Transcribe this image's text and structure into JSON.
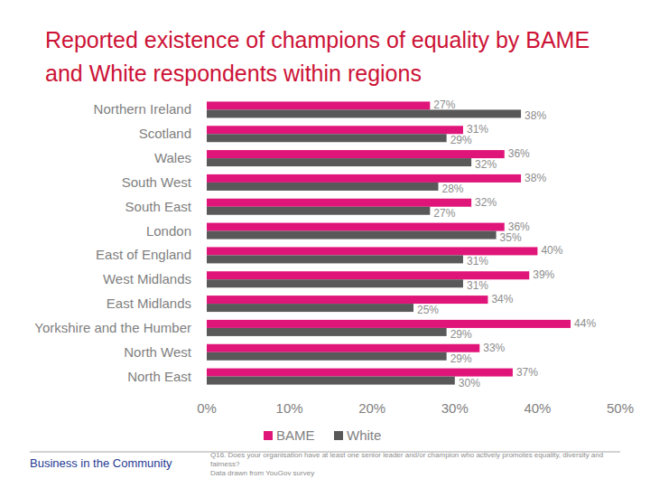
{
  "chart_data": {
    "type": "bar",
    "orientation": "horizontal",
    "title": "Reported existence of champions of equality by BAME and White respondents within regions",
    "categories": [
      "Northern Ireland",
      "Scotland",
      "Wales",
      "South West",
      "South East",
      "London",
      "East of England",
      "West Midlands",
      "East Midlands",
      "Yorkshire and the Humber",
      "North West",
      "North East"
    ],
    "series": [
      {
        "name": "BAME",
        "color": "#e0157a",
        "values": [
          27,
          31,
          36,
          38,
          32,
          36,
          40,
          39,
          34,
          44,
          33,
          37
        ],
        "value_labels": [
          "27%",
          "31%",
          "36%",
          "38%",
          "32%",
          "36%",
          "40%",
          "39%",
          "34%",
          "44%",
          "33%",
          "37%"
        ]
      },
      {
        "name": "White",
        "color": "#595959",
        "values": [
          38,
          29,
          32,
          28,
          27,
          35,
          31,
          31,
          25,
          29,
          29,
          30
        ],
        "value_labels": [
          "38%",
          "29%",
          "32%",
          "28%",
          "27%",
          "35%",
          "31%",
          "31%",
          "25%",
          "29%",
          "29%",
          "30%"
        ]
      }
    ],
    "xlim": [
      0,
      50
    ],
    "xticks": [
      {
        "value": 0,
        "label": "0%"
      },
      {
        "value": 10,
        "label": "10%"
      },
      {
        "value": 20,
        "label": "20%"
      },
      {
        "value": 30,
        "label": "30%"
      },
      {
        "value": 40,
        "label": "40%"
      },
      {
        "value": 50,
        "label": "50%"
      }
    ],
    "grid": false,
    "legend": "bottom",
    "data_labels": true,
    "annotations": [
      "Business in the Community",
      "Q16. Does your organisation have at least one senior leader and/or champion who actively promotes equality, diversity and fairness?",
      "Data drawn from YouGov survey"
    ]
  }
}
